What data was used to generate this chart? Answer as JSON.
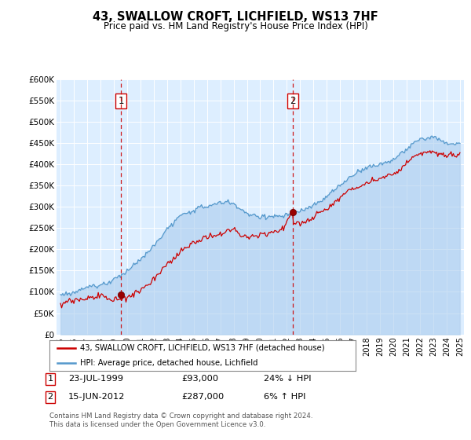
{
  "title": "43, SWALLOW CROFT, LICHFIELD, WS13 7HF",
  "subtitle": "Price paid vs. HM Land Registry's House Price Index (HPI)",
  "background_color": "#ffffff",
  "plot_bg_color": "#ddeeff",
  "ylim": [
    0,
    600000
  ],
  "yticks": [
    0,
    50000,
    100000,
    150000,
    200000,
    250000,
    300000,
    350000,
    400000,
    450000,
    500000,
    550000,
    600000
  ],
  "ytick_labels": [
    "£0",
    "£50K",
    "£100K",
    "£150K",
    "£200K",
    "£250K",
    "£300K",
    "£350K",
    "£400K",
    "£450K",
    "£500K",
    "£550K",
    "£600K"
  ],
  "xlim_start": 1994.7,
  "xlim_end": 2025.3,
  "xticks": [
    1995,
    1996,
    1997,
    1998,
    1999,
    2000,
    2001,
    2002,
    2003,
    2004,
    2005,
    2006,
    2007,
    2008,
    2009,
    2010,
    2011,
    2012,
    2013,
    2014,
    2015,
    2016,
    2017,
    2018,
    2019,
    2020,
    2021,
    2022,
    2023,
    2024,
    2025
  ],
  "sale1_date": 1999.55,
  "sale1_price": 93000,
  "sale1_label": "1",
  "sale2_date": 2012.45,
  "sale2_price": 287000,
  "sale2_label": "2",
  "sale_line_color": "#cc0000",
  "sale_marker_color": "#990000",
  "sale_marker_size": 6,
  "hpi_line_color": "#5599cc",
  "hpi_fill_color": "#aaccee",
  "property_line_color": "#cc0000",
  "legend_label1": "43, SWALLOW CROFT, LICHFIELD, WS13 7HF (detached house)",
  "legend_label2": "HPI: Average price, detached house, Lichfield",
  "note1_label": "1",
  "note1_date": "23-JUL-1999",
  "note1_price": "£93,000",
  "note1_rel": "24% ↓ HPI",
  "note2_label": "2",
  "note2_date": "15-JUN-2012",
  "note2_price": "£287,000",
  "note2_rel": "6% ↑ HPI",
  "footer": "Contains HM Land Registry data © Crown copyright and database right 2024.\nThis data is licensed under the Open Government Licence v3.0."
}
